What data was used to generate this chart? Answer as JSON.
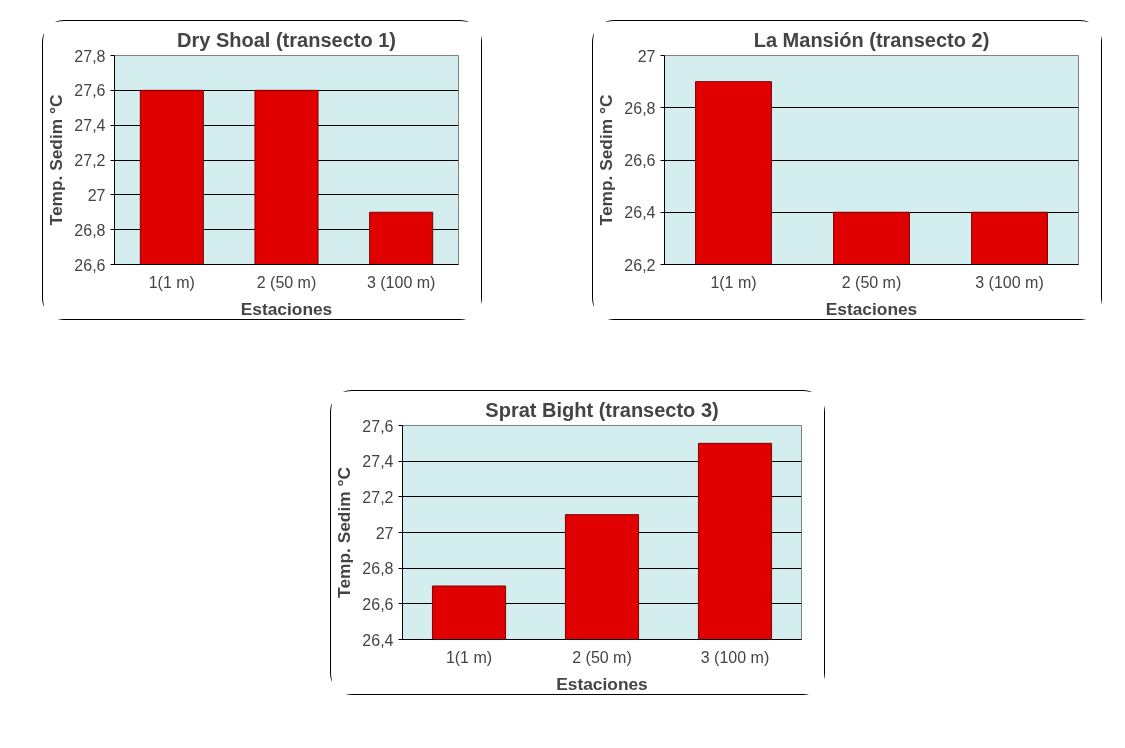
{
  "chart_data": [
    {
      "type": "bar",
      "title": "Dry Shoal (transecto 1)",
      "xlabel": "Estaciones",
      "ylabel": "Temp. Sedim °C",
      "categories": [
        "1(1 m)",
        "2 (50 m)",
        "3 (100 m)"
      ],
      "values": [
        27.6,
        27.6,
        26.9
      ],
      "color": "#e00000",
      "ylim": [
        26.6,
        27.8
      ],
      "yticks": [
        {
          "value": 26.6,
          "label": "26,6"
        },
        {
          "value": 26.8,
          "label": "26,8"
        },
        27,
        {
          "value": 27.2,
          "label": "27,2"
        },
        {
          "value": 27.4,
          "label": "27,4"
        },
        {
          "value": 27.6,
          "label": "27,6"
        },
        {
          "value": 27.8,
          "label": "27,8"
        }
      ],
      "grid": "y"
    },
    {
      "type": "bar",
      "title": "La Mansión (transecto 2)",
      "xlabel": "Estaciones",
      "ylabel": "Temp. Sedim °C",
      "categories": [
        "1(1 m)",
        "2 (50 m)",
        "3 (100 m)"
      ],
      "values": [
        26.9,
        26.4,
        26.4
      ],
      "color": "#e00000",
      "ylim": [
        26.2,
        27
      ],
      "yticks": [
        {
          "value": 26.2,
          "label": "26,2"
        },
        {
          "value": 26.4,
          "label": "26,4"
        },
        {
          "value": 26.6,
          "label": "26,6"
        },
        {
          "value": 26.8,
          "label": "26,8"
        },
        27
      ],
      "grid": "y"
    },
    {
      "type": "bar",
      "title": "Sprat Bight (transecto 3)",
      "xlabel": "Estaciones",
      "ylabel": "Temp. Sedim °C",
      "categories": [
        "1(1 m)",
        "2 (50 m)",
        "3 (100 m)"
      ],
      "values": [
        26.7,
        27.1,
        27.5
      ],
      "color": "#e00000",
      "ylim": [
        26.4,
        27.6
      ],
      "yticks": [
        {
          "value": 26.4,
          "label": "26,4"
        },
        {
          "value": 26.6,
          "label": "26,6"
        },
        {
          "value": 26.8,
          "label": "26,8"
        },
        27,
        {
          "value": 27.2,
          "label": "27,2"
        },
        {
          "value": 27.4,
          "label": "27,4"
        },
        {
          "value": 27.6,
          "label": "27,6"
        }
      ],
      "grid": "y"
    }
  ]
}
